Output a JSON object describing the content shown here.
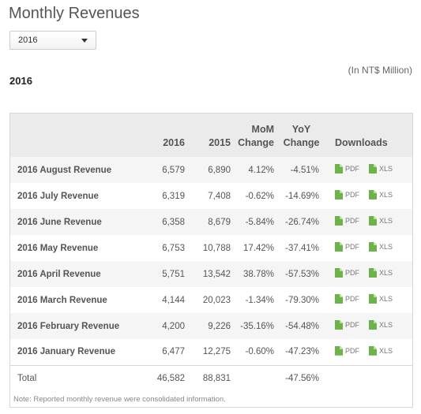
{
  "title": "Monthly Revenues",
  "year_select": {
    "value": "2016"
  },
  "unit_note": "(In NT$ Million)",
  "year_heading": "2016",
  "table": {
    "headers": {
      "col_2016": "2016",
      "col_2015": "2015",
      "mom_line1": "MoM",
      "mom_line2": "Change",
      "yoy_line1": "YoY",
      "yoy_line2": "Change",
      "downloads": "Downloads"
    },
    "rows": [
      {
        "label": "2016 August Revenue",
        "v2016": "6,579",
        "v2015": "6,890",
        "mom": "4.12%",
        "yoy": "-4.51%"
      },
      {
        "label": "2016 July Revenue",
        "v2016": "6,319",
        "v2015": "7,408",
        "mom": "-0.62%",
        "yoy": "-14.69%"
      },
      {
        "label": "2016 June Revenue",
        "v2016": "6,358",
        "v2015": "8,679",
        "mom": "-5.84%",
        "yoy": "-26.74%"
      },
      {
        "label": "2016 May Revenue",
        "v2016": "6,753",
        "v2015": "10,788",
        "mom": "17.42%",
        "yoy": "-37.41%"
      },
      {
        "label": "2016 April Revenue",
        "v2016": "5,751",
        "v2015": "13,542",
        "mom": "38.78%",
        "yoy": "-57.53%"
      },
      {
        "label": "2016 March Revenue",
        "v2016": "4,144",
        "v2015": "20,023",
        "mom": "-1.34%",
        "yoy": "-79.30%"
      },
      {
        "label": "2016 February Revenue",
        "v2016": "4,200",
        "v2015": "9,226",
        "mom": "-35.16%",
        "yoy": "-54.48%"
      },
      {
        "label": "2016 January Revenue",
        "v2016": "6,477",
        "v2015": "12,275",
        "mom": "-0.60%",
        "yoy": "-47.23%"
      }
    ],
    "download_labels": {
      "pdf": "PDF",
      "xls": "XLS"
    },
    "total": {
      "label": "Total",
      "v2016": "46,582",
      "v2015": "88,831",
      "mom": "",
      "yoy": "-47.56%"
    },
    "footnote": "Note: Reported monthly revenue were consolidated information."
  },
  "colors": {
    "file_icon": "#6cb44a",
    "header_bg": "#ebebeb",
    "stripe": "#f5f5f5"
  }
}
